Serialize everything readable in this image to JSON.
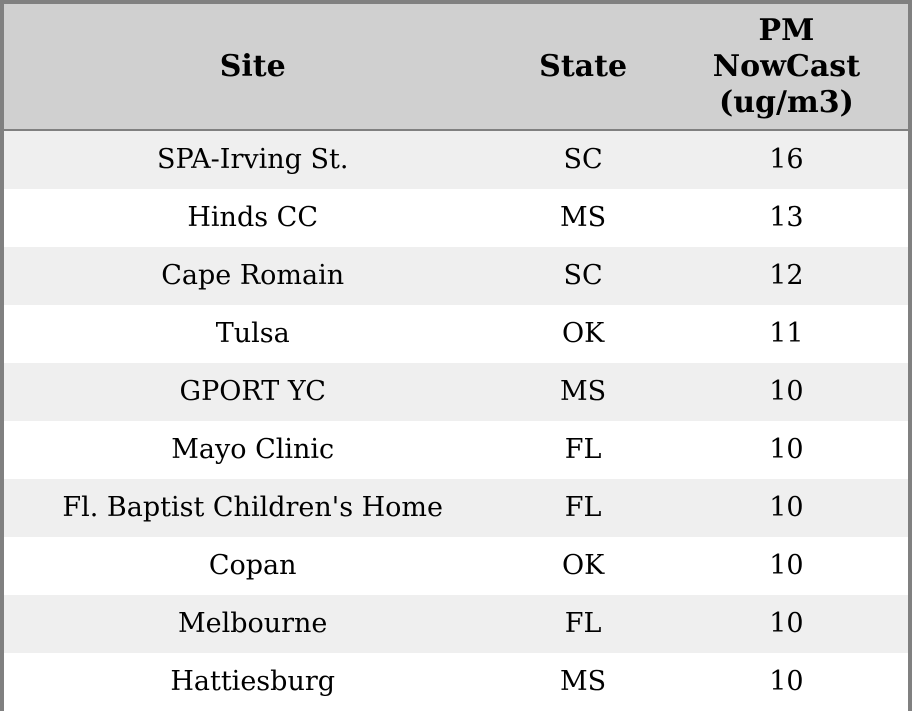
{
  "colors": {
    "header_bg": "#d0d0d0",
    "stripe_row_bg": "#efefef",
    "plain_row_bg": "#ffffff",
    "border": "#808080",
    "text": "#000000"
  },
  "chart_data": {
    "type": "table",
    "title": "",
    "columns": [
      "Site",
      "State",
      "PM NowCast (ug/m3)"
    ],
    "rows": [
      [
        "SPA-Irving St.",
        "SC",
        16
      ],
      [
        "Hinds CC",
        "MS",
        13
      ],
      [
        "Cape Romain",
        "SC",
        12
      ],
      [
        "Tulsa",
        "OK",
        11
      ],
      [
        "GPORT YC",
        "MS",
        10
      ],
      [
        "Mayo Clinic",
        "FL",
        10
      ],
      [
        "Fl. Baptist Children's Home",
        "FL",
        10
      ],
      [
        "Copan",
        "OK",
        10
      ],
      [
        "Melbourne",
        "FL",
        10
      ],
      [
        "Hattiesburg",
        "MS",
        10
      ]
    ]
  },
  "table": {
    "headers": {
      "site": "Site",
      "state": "State",
      "pm": "PM NowCast (ug/m3)"
    },
    "rows": [
      {
        "site": "SPA-Irving St.",
        "state": "SC",
        "pm": "16"
      },
      {
        "site": "Hinds CC",
        "state": "MS",
        "pm": "13"
      },
      {
        "site": "Cape Romain",
        "state": "SC",
        "pm": "12"
      },
      {
        "site": "Tulsa",
        "state": "OK",
        "pm": "11"
      },
      {
        "site": "GPORT YC",
        "state": "MS",
        "pm": "10"
      },
      {
        "site": "Mayo Clinic",
        "state": "FL",
        "pm": "10"
      },
      {
        "site": "Fl. Baptist Children's Home",
        "state": "FL",
        "pm": "10"
      },
      {
        "site": "Copan",
        "state": "OK",
        "pm": "10"
      },
      {
        "site": "Melbourne",
        "state": "FL",
        "pm": "10"
      },
      {
        "site": "Hattiesburg",
        "state": "MS",
        "pm": "10"
      }
    ]
  }
}
